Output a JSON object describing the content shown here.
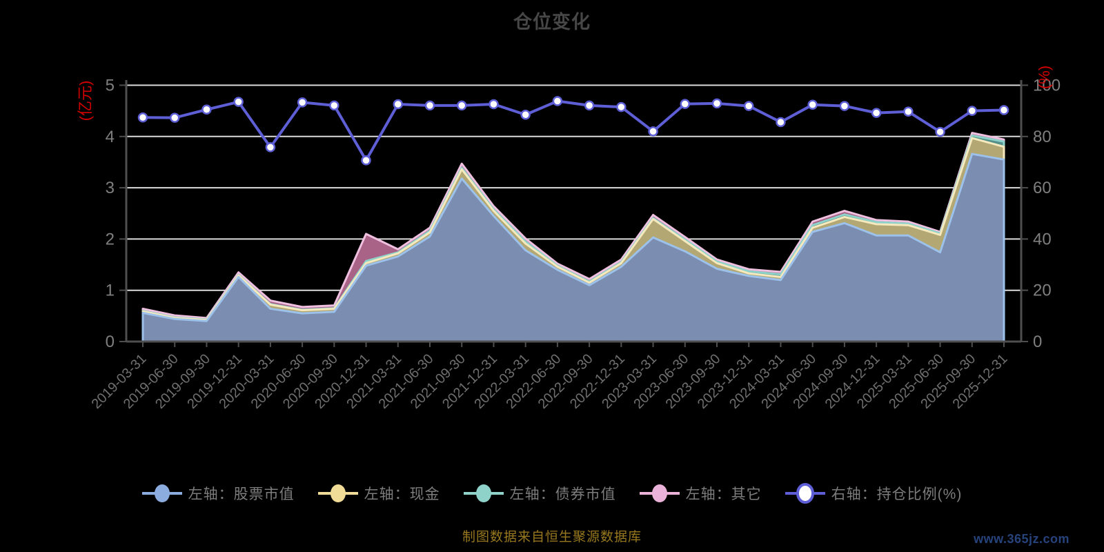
{
  "title": "仓位变化",
  "source_note": "制图数据来自恒生聚源数据库",
  "watermark": "www.365jz.com",
  "left_axis": {
    "unit_label": "(亿元)",
    "ticks": [
      0,
      1,
      2,
      3,
      4,
      5
    ],
    "range": [
      0,
      5
    ],
    "label_color": "#d40000"
  },
  "right_axis": {
    "unit_label": "(%)",
    "ticks": [
      0,
      20,
      40,
      60,
      80,
      100
    ],
    "range": [
      0,
      100
    ],
    "label_color": "#d40000"
  },
  "legend": [
    {
      "label": "左轴：股票市值",
      "color": "#8cabdf",
      "type": "area"
    },
    {
      "label": "左轴：现金",
      "color": "#f0dc96",
      "type": "area"
    },
    {
      "label": "左轴：债券市值",
      "color": "#8ed2ca",
      "type": "area"
    },
    {
      "label": "左轴：其它",
      "color": "#eab2d8",
      "type": "area"
    },
    {
      "label": "右轴：持仓比例(%)",
      "color": "#5e5fd6",
      "type": "line"
    }
  ],
  "chart_data": {
    "type": "area",
    "subtype": "stacked-area-with-right-axis-line",
    "categories": [
      "2019-03-31",
      "2019-06-30",
      "2019-09-30",
      "2019-12-31",
      "2020-03-31",
      "2020-06-30",
      "2020-09-30",
      "2020-12-31",
      "2021-03-31",
      "2021-06-30",
      "2021-09-30",
      "2021-12-31",
      "2022-03-31",
      "2022-06-30",
      "2022-09-30",
      "2022-12-31",
      "2023-03-31",
      "2023-06-30",
      "2023-09-30",
      "2023-12-31",
      "2024-03-31",
      "2024-06-30",
      "2024-09-30",
      "2024-12-31",
      "2025-03-31",
      "2025-06-30",
      "2025-09-30",
      "2025-12-31"
    ],
    "series": [
      {
        "name": "左轴：股票市值",
        "axis": "left",
        "kind": "stacked-area",
        "fill": "#7b8db0",
        "border": "#9cc1ea",
        "values": [
          0.56,
          0.44,
          0.4,
          1.26,
          0.64,
          0.55,
          0.58,
          1.48,
          1.66,
          2.05,
          3.18,
          2.45,
          1.78,
          1.4,
          1.1,
          1.46,
          2.03,
          1.76,
          1.42,
          1.28,
          1.2,
          2.14,
          2.31,
          2.07,
          2.07,
          1.74,
          3.66,
          3.55
        ]
      },
      {
        "name": "左轴：现金",
        "axis": "left",
        "kind": "stacked-area",
        "fill": "#b3a874",
        "border": "#f5e9bd",
        "values": [
          0.03,
          0.02,
          0.02,
          0.03,
          0.08,
          0.06,
          0.06,
          0.05,
          0.06,
          0.08,
          0.18,
          0.1,
          0.13,
          0.06,
          0.05,
          0.07,
          0.36,
          0.2,
          0.11,
          0.05,
          0.06,
          0.08,
          0.12,
          0.22,
          0.2,
          0.34,
          0.31,
          0.25
        ]
      },
      {
        "name": "左轴：债券市值",
        "axis": "left",
        "kind": "stacked-area",
        "fill": "#55918b",
        "border": "#8ed2ca",
        "values": [
          0.01,
          0.01,
          0.01,
          0.01,
          0.01,
          0.01,
          0.01,
          0.04,
          0.02,
          0.03,
          0.03,
          0.03,
          0.04,
          0.02,
          0.02,
          0.02,
          0.02,
          0.03,
          0.03,
          0.04,
          0.05,
          0.05,
          0.05,
          0.04,
          0.03,
          0.03,
          0.05,
          0.1
        ]
      },
      {
        "name": "左轴：其它",
        "axis": "left",
        "kind": "stacked-area",
        "fill": "#a86387",
        "border": "#f0c0e0",
        "values": [
          0.04,
          0.04,
          0.03,
          0.05,
          0.07,
          0.055,
          0.055,
          0.53,
          0.06,
          0.06,
          0.08,
          0.06,
          0.06,
          0.04,
          0.05,
          0.05,
          0.06,
          0.05,
          0.04,
          0.04,
          0.05,
          0.07,
          0.07,
          0.04,
          0.04,
          0.03,
          0.05,
          0.04
        ]
      },
      {
        "name": "右轴：持仓比例(%)",
        "axis": "right",
        "kind": "line",
        "color": "#5e5fd6",
        "marker_fill": "#ffffff",
        "values": [
          87.4,
          87.3,
          90.5,
          93.5,
          75.8,
          93.3,
          92.1,
          70.7,
          92.6,
          92.1,
          92.1,
          92.6,
          88.5,
          93.8,
          92.1,
          91.5,
          82.0,
          92.7,
          92.9,
          91.9,
          85.6,
          92.4,
          91.9,
          89.2,
          89.7,
          81.8,
          90.0,
          90.3
        ]
      }
    ],
    "left_ylim": [
      0,
      5
    ],
    "right_ylim": [
      0,
      100
    ],
    "grid": "horizontal-white-lines",
    "legend_position": "bottom"
  },
  "style_colors": {
    "background": "#000000",
    "title": "#474747",
    "axis_line": "#4f4f4f",
    "grid_line": "#dcdcdc",
    "tick_label": "#7f7f7f",
    "x_label": "#6f6f6f",
    "unit_label": "#d40000"
  }
}
